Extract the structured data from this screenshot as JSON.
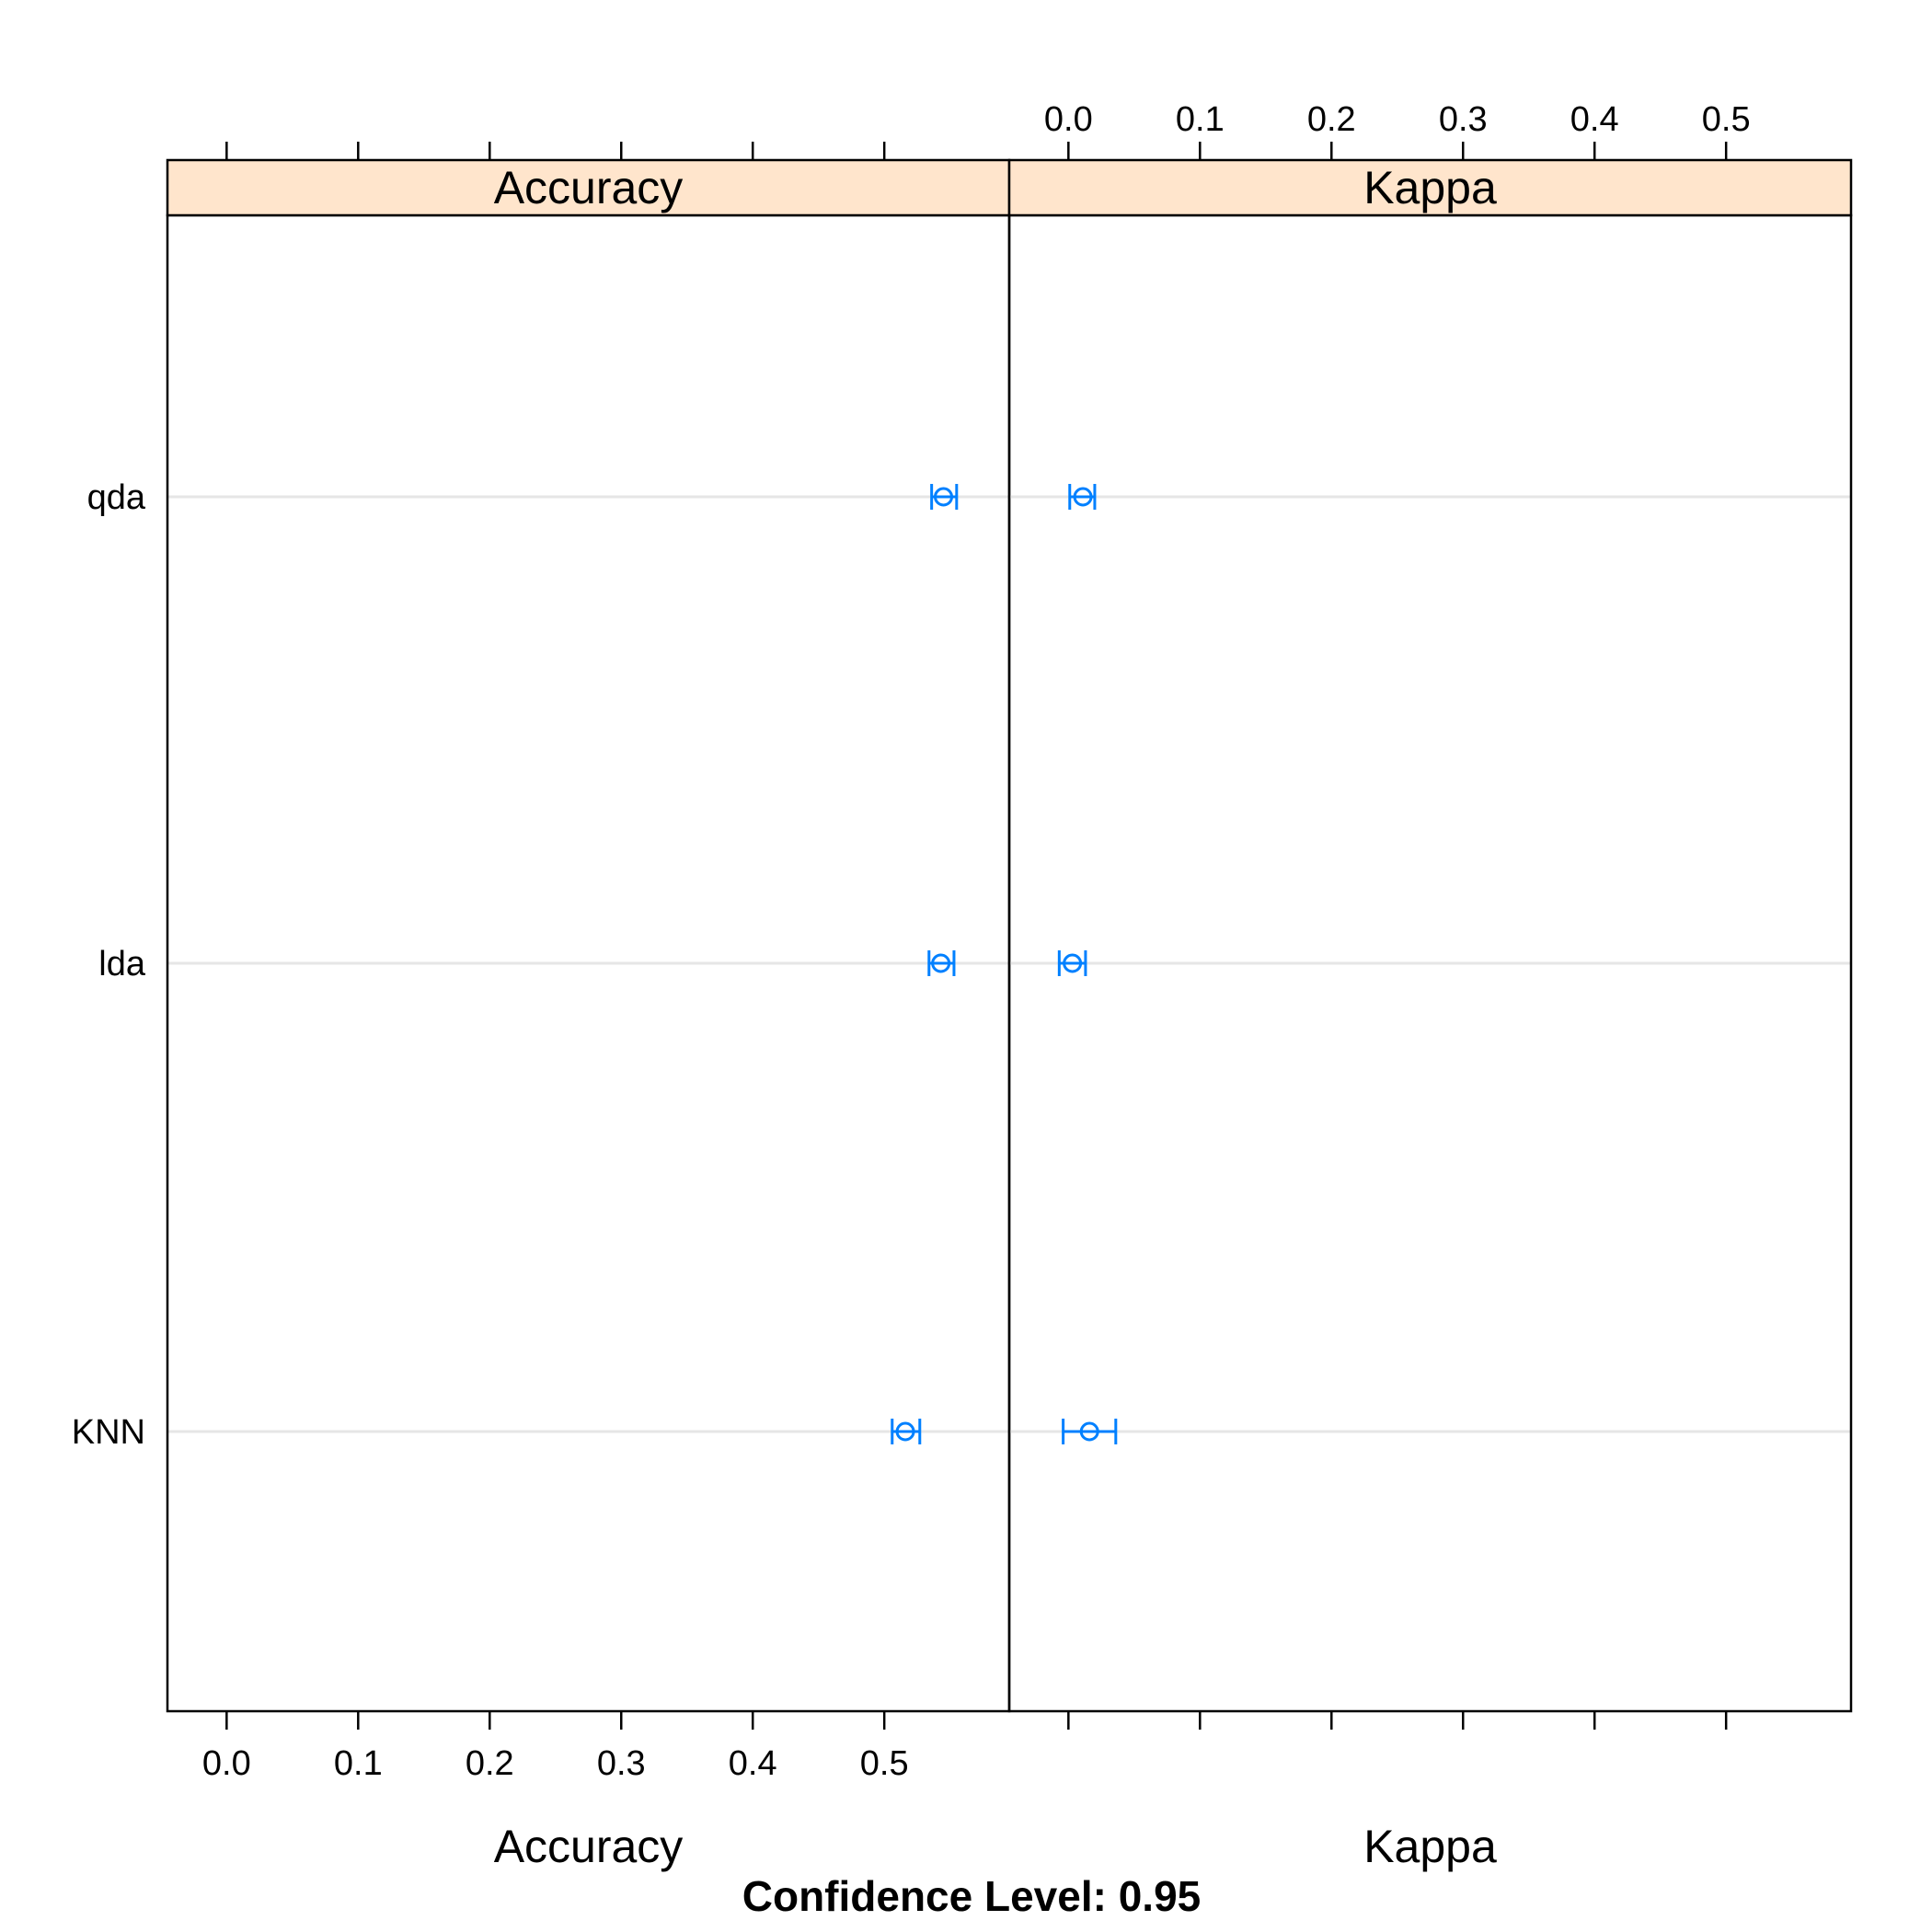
{
  "chart_data": {
    "type": "dotplot",
    "main_title": "Confidence Level: 0.95",
    "categories": [
      "KNN",
      "lda",
      "qda"
    ],
    "x_ticks": [
      0.0,
      0.1,
      0.2,
      0.3,
      0.4,
      0.5
    ],
    "x_tick_labels": [
      "0.0",
      "0.1",
      "0.2",
      "0.3",
      "0.4",
      "0.5"
    ],
    "xlim": [
      -0.045,
      0.595
    ],
    "panels": [
      {
        "strip": "Accuracy",
        "xlabel": "Accuracy",
        "tick_labels_side": "bottom",
        "points": [
          {
            "category": "KNN",
            "estimate": 0.516,
            "lower": 0.506,
            "upper": 0.527
          },
          {
            "category": "lda",
            "estimate": 0.543,
            "lower": 0.534,
            "upper": 0.553
          },
          {
            "category": "qda",
            "estimate": 0.545,
            "lower": 0.536,
            "upper": 0.555
          }
        ]
      },
      {
        "strip": "Kappa",
        "xlabel": "Kappa",
        "tick_labels_side": "top",
        "points": [
          {
            "category": "KNN",
            "estimate": 0.016,
            "lower": -0.004,
            "upper": 0.036
          },
          {
            "category": "lda",
            "estimate": 0.003,
            "lower": -0.007,
            "upper": 0.013
          },
          {
            "category": "qda",
            "estimate": 0.011,
            "lower": 0.001,
            "upper": 0.02
          }
        ]
      }
    ],
    "colors": {
      "marks": "#0080ff",
      "strip": "#ffe5cc",
      "reference_lines": "#e6e6e6"
    }
  }
}
